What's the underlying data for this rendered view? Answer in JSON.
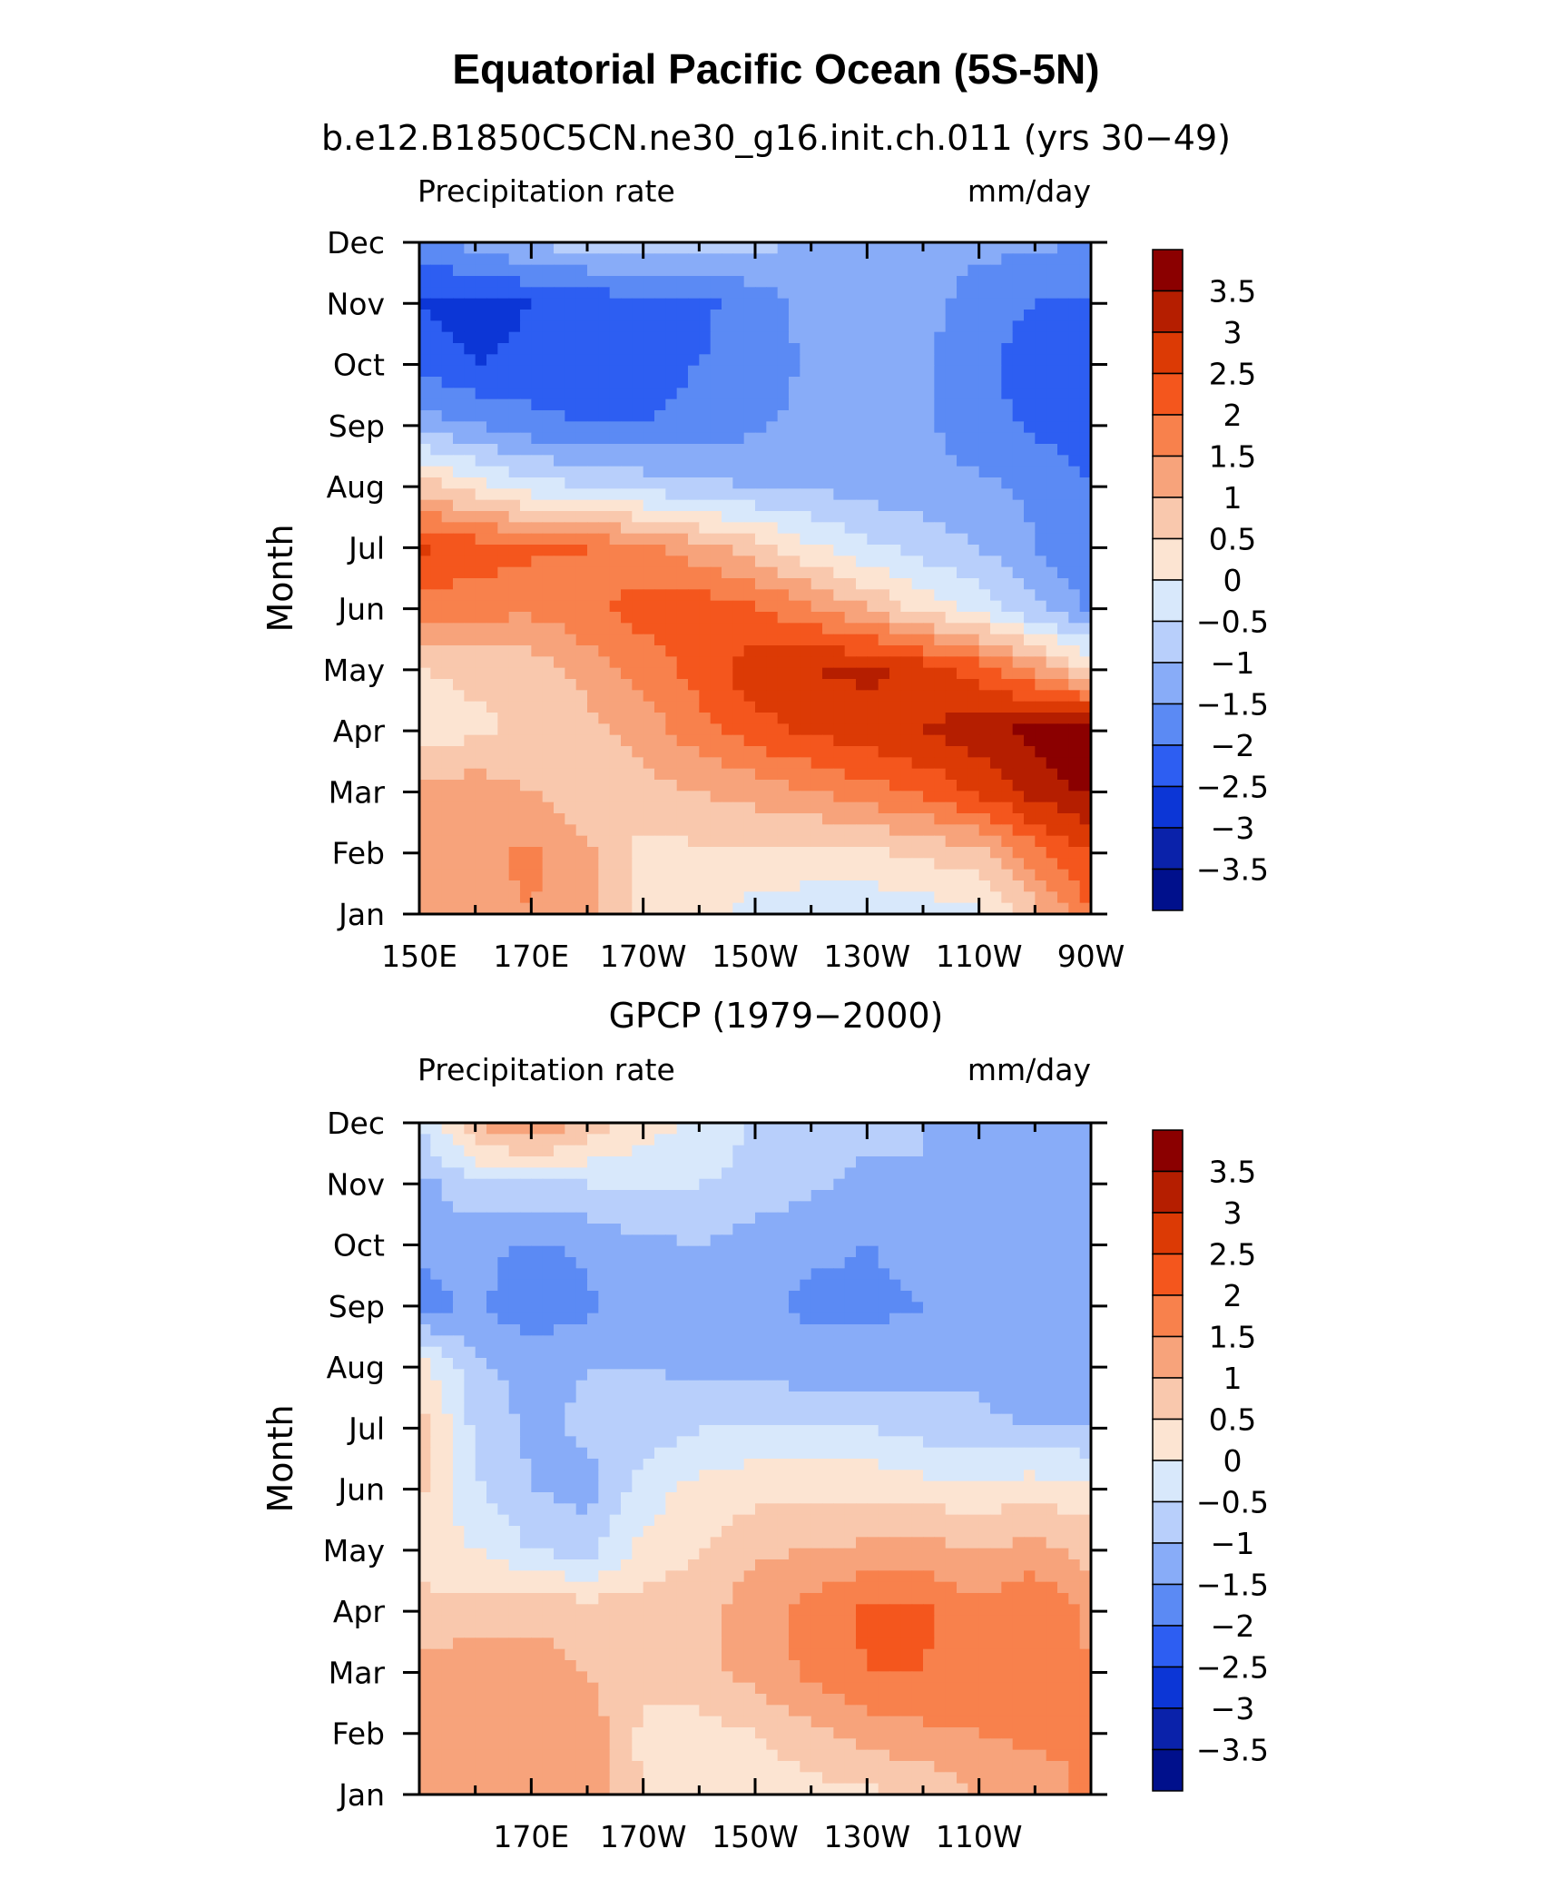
{
  "figure": {
    "title": "Equatorial Pacific Ocean (5S-5N)"
  },
  "colorbar": {
    "levels": [
      "3.5",
      "3",
      "2.5",
      "2",
      "1.5",
      "1",
      "0.5",
      "0",
      "−0.5",
      "−1",
      "−1.5",
      "−2",
      "−2.5",
      "−3",
      "−3.5"
    ],
    "colors": [
      "#8b0000",
      "#b51e00",
      "#dc3a05",
      "#f4561d",
      "#f8814c",
      "#f7a37b",
      "#f9c8ad",
      "#fce4d2",
      "#d8e8fb",
      "#b8cffb",
      "#88acf8",
      "#5b8af4",
      "#2d5ef2",
      "#0c36d6",
      "#0a22aa",
      "#00108c"
    ]
  },
  "chart_data": [
    {
      "type": "heatmap",
      "title": "b.e12.B1850C5CN.ne30_g16.init.ch.011 (yrs 30−49)",
      "left_label": "Precipitation rate",
      "right_label": "mm/day",
      "ylabel": "Month",
      "xlabel": "",
      "x_tick_labels": [
        "150E",
        "170E",
        "170W",
        "150W",
        "130W",
        "110W",
        "90W"
      ],
      "x_tick_lons": [
        150,
        170,
        190,
        210,
        230,
        250,
        270
      ],
      "xlim": [
        150,
        270
      ],
      "y_tick_labels": [
        "Jan",
        "Feb",
        "Mar",
        "Apr",
        "May",
        "Jun",
        "Jul",
        "Aug",
        "Sep",
        "Oct",
        "Nov",
        "Dec"
      ],
      "x": [
        150,
        160,
        170,
        180,
        190,
        200,
        210,
        220,
        230,
        240,
        250,
        260,
        270
      ],
      "values": [
        [
          1.2,
          1.3,
          1.5,
          1.2,
          0.4,
          0.2,
          -0.2,
          -0.3,
          -0.4,
          -0.3,
          -0.1,
          0.8,
          2.0
        ],
        [
          1.0,
          1.4,
          1.6,
          1.1,
          0.3,
          0.4,
          0.4,
          0.3,
          0.4,
          0.6,
          0.8,
          1.8,
          2.5
        ],
        [
          1.2,
          1.3,
          1.0,
          0.7,
          0.8,
          1.0,
          1.2,
          1.5,
          1.8,
          2.1,
          2.6,
          3.2,
          3.6
        ],
        [
          0.2,
          0.4,
          0.6,
          0.8,
          1.2,
          1.8,
          2.3,
          2.6,
          2.8,
          3.0,
          3.3,
          3.7,
          3.9
        ],
        [
          0.5,
          0.6,
          0.7,
          1.2,
          1.7,
          2.2,
          2.8,
          3.0,
          3.1,
          2.8,
          2.3,
          1.4,
          0.4
        ],
        [
          1.8,
          1.7,
          1.6,
          1.9,
          2.2,
          2.3,
          2.1,
          1.6,
          1.0,
          0.3,
          -0.2,
          -0.9,
          -1.6
        ],
        [
          2.6,
          2.3,
          2.1,
          2.0,
          1.6,
          1.2,
          0.7,
          0.1,
          -0.4,
          -0.7,
          -1.0,
          -1.5,
          -1.9
        ],
        [
          0.8,
          0.2,
          -0.3,
          -0.5,
          -0.7,
          -0.9,
          -1.0,
          -1.1,
          -1.2,
          -1.3,
          -1.4,
          -1.6,
          -2.0
        ],
        [
          -1.2,
          -1.5,
          -1.8,
          -2.0,
          -2.0,
          -1.8,
          -1.6,
          -1.3,
          -1.3,
          -1.4,
          -1.8,
          -2.1,
          -2.3
        ],
        [
          -2.2,
          -2.5,
          -2.4,
          -2.4,
          -2.2,
          -2.0,
          -1.8,
          -1.4,
          -1.3,
          -1.4,
          -1.9,
          -2.2,
          -2.4
        ],
        [
          -2.5,
          -2.7,
          -2.5,
          -2.3,
          -2.2,
          -2.1,
          -1.8,
          -1.3,
          -1.2,
          -1.3,
          -1.8,
          -2.0,
          -2.1
        ],
        [
          -1.8,
          -1.3,
          -0.9,
          -0.8,
          -0.7,
          -0.8,
          -0.9,
          -1.0,
          -1.1,
          -1.2,
          -1.3,
          -1.4,
          -1.5
        ]
      ]
    },
    {
      "type": "heatmap",
      "title": "GPCP (1979−2000)",
      "left_label": "Precipitation rate",
      "right_label": "mm/day",
      "ylabel": "Month",
      "xlabel": "",
      "x_tick_labels": [
        "170E",
        "170W",
        "150W",
        "130W",
        "110W"
      ],
      "x_tick_lons": [
        170,
        190,
        210,
        230,
        250
      ],
      "xlim": [
        150,
        270
      ],
      "y_tick_labels": [
        "Jan",
        "Feb",
        "Mar",
        "Apr",
        "May",
        "Jun",
        "Jul",
        "Aug",
        "Sep",
        "Oct",
        "Nov",
        "Dec"
      ],
      "x": [
        150,
        160,
        170,
        180,
        190,
        200,
        210,
        220,
        230,
        240,
        250,
        260,
        270
      ],
      "values": [
        [
          1.1,
          1.2,
          1.4,
          1.5,
          0.4,
          0.2,
          0.1,
          0.3,
          0.4,
          0.6,
          1.0,
          1.3,
          1.6
        ],
        [
          1.2,
          1.3,
          1.4,
          1.3,
          0.4,
          0.3,
          0.5,
          0.9,
          1.2,
          1.4,
          1.5,
          1.6,
          1.5
        ],
        [
          1.1,
          1.3,
          1.2,
          1.0,
          0.6,
          0.8,
          1.2,
          1.6,
          2.0,
          2.0,
          1.7,
          1.8,
          1.5
        ],
        [
          0.7,
          0.8,
          0.9,
          0.8,
          0.7,
          0.8,
          1.3,
          1.7,
          2.1,
          2.1,
          1.6,
          2.0,
          1.4
        ],
        [
          0.2,
          0.0,
          -0.5,
          -0.7,
          0.2,
          0.5,
          0.9,
          1.0,
          1.1,
          1.2,
          1.0,
          1.2,
          0.8
        ],
        [
          0.6,
          -0.4,
          -1.0,
          -1.2,
          -0.3,
          0.2,
          0.3,
          0.4,
          0.4,
          0.2,
          0.2,
          0.3,
          0.2
        ],
        [
          0.7,
          -0.6,
          -1.1,
          -0.9,
          -0.8,
          -0.5,
          -0.4,
          -0.4,
          -0.5,
          -0.7,
          -0.9,
          -1.0,
          -1.0
        ],
        [
          0.3,
          -0.9,
          -1.2,
          -1.0,
          -1.0,
          -1.1,
          -1.2,
          -1.3,
          -1.3,
          -1.2,
          -1.1,
          -1.4,
          -1.2
        ],
        [
          -1.7,
          -1.4,
          -1.9,
          -1.6,
          -1.2,
          -1.1,
          -1.4,
          -1.6,
          -1.6,
          -1.5,
          -1.3,
          -1.4,
          -1.2
        ],
        [
          -1.4,
          -1.3,
          -1.6,
          -1.4,
          -1.1,
          -1.0,
          -1.3,
          -1.4,
          -1.5,
          -1.4,
          -1.2,
          -1.3,
          -1.4
        ],
        [
          -1.2,
          -0.6,
          -0.5,
          -0.5,
          -0.4,
          -0.5,
          -0.6,
          -0.9,
          -1.1,
          -1.0,
          -1.0,
          -1.0,
          -1.0
        ],
        [
          -0.4,
          1.0,
          1.6,
          0.9,
          0.2,
          -0.1,
          -0.6,
          -0.8,
          -0.9,
          -1.0,
          -1.0,
          -1.0,
          -1.1
        ]
      ]
    }
  ]
}
